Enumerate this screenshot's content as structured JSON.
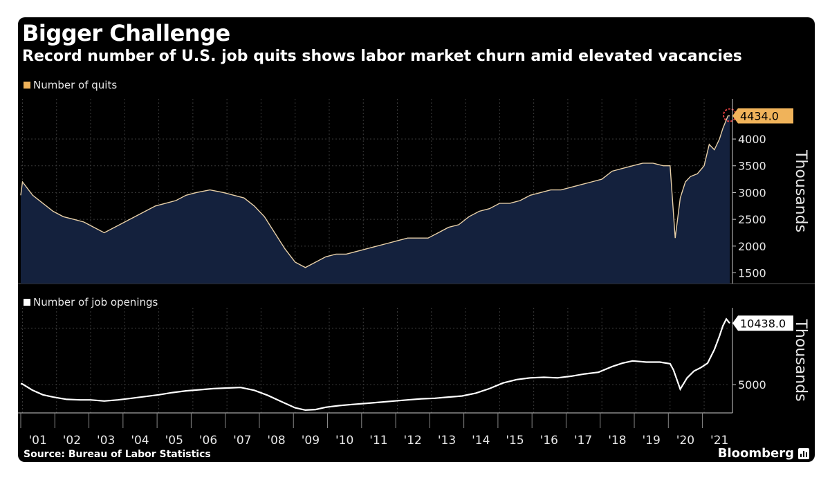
{
  "header": {
    "title": "Bigger Challenge",
    "subtitle": "Record number of U.S. job quits shows labor market churn amid elevated vacancies"
  },
  "footer": {
    "source": "Source: Bureau of Labor Statistics",
    "brand": "Bloomberg"
  },
  "colors": {
    "background": "#000000",
    "quits_line": "#e8d0a8",
    "quits_fill": "#14213d",
    "quits_badge": "#f0b35a",
    "openings_line": "#ffffff",
    "highlight_circle": "#e04040"
  },
  "chart_data": [
    {
      "type": "area",
      "legend": "Number of quits",
      "ylabel": "Thousands",
      "ylim": [
        1300,
        4750
      ],
      "yticks": [
        1500,
        2000,
        2500,
        3000,
        3500,
        4000
      ],
      "last_value_label": "4434.0",
      "x_ticks": [
        "'01",
        "'02",
        "'03",
        "'04",
        "'05",
        "'06",
        "'07",
        "'08",
        "'09",
        "'10",
        "'11",
        "'12",
        "'13",
        "'14",
        "'15",
        "'16",
        "'17",
        "'18",
        "'19",
        "'20",
        "'21"
      ],
      "series": [
        {
          "x": [
            2000.95,
            2001.0,
            2001.3,
            2001.6,
            2001.9,
            2002.2,
            2002.5,
            2002.8,
            2003.1,
            2003.4,
            2003.7,
            2004.0,
            2004.3,
            2004.6,
            2004.9,
            2005.2,
            2005.5,
            2005.8,
            2006.1,
            2006.5,
            2006.9,
            2007.2,
            2007.5,
            2007.8,
            2008.1,
            2008.4,
            2008.7,
            2009.0,
            2009.3,
            2009.6,
            2009.9,
            2010.2,
            2010.5,
            2010.8,
            2011.1,
            2011.4,
            2011.7,
            2012.0,
            2012.3,
            2012.6,
            2012.9,
            2013.2,
            2013.5,
            2013.8,
            2014.1,
            2014.4,
            2014.7,
            2015.0,
            2015.3,
            2015.6,
            2015.9,
            2016.2,
            2016.5,
            2016.8,
            2017.1,
            2017.4,
            2017.7,
            2018.0,
            2018.3,
            2018.6,
            2018.9,
            2019.2,
            2019.5,
            2019.8,
            2020.0,
            2020.15,
            2020.3,
            2020.45,
            2020.6,
            2020.8,
            2021.0,
            2021.15,
            2021.3,
            2021.45,
            2021.55,
            2021.7,
            2021.75
          ],
          "values": [
            2950,
            3200,
            2950,
            2800,
            2650,
            2550,
            2500,
            2450,
            2350,
            2250,
            2350,
            2450,
            2550,
            2650,
            2750,
            2800,
            2850,
            2950,
            3000,
            3050,
            3000,
            2950,
            2900,
            2750,
            2550,
            2250,
            1950,
            1700,
            1600,
            1700,
            1800,
            1850,
            1850,
            1900,
            1950,
            2000,
            2050,
            2100,
            2150,
            2150,
            2150,
            2250,
            2350,
            2400,
            2550,
            2650,
            2700,
            2800,
            2800,
            2850,
            2950,
            3000,
            3050,
            3050,
            3100,
            3150,
            3200,
            3250,
            3400,
            3450,
            3500,
            3550,
            3550,
            3500,
            3500,
            2150,
            2900,
            3200,
            3300,
            3350,
            3500,
            3900,
            3800,
            4000,
            4200,
            4434,
            4434
          ]
        }
      ]
    },
    {
      "type": "line",
      "legend": "Number of job openings",
      "ylabel": "Thousands",
      "ylim": [
        2500,
        11800
      ],
      "yticks": [
        5000
      ],
      "last_value_label": "10438.0",
      "x_ticks": [
        "'01",
        "'02",
        "'03",
        "'04",
        "'05",
        "'06",
        "'07",
        "'08",
        "'09",
        "'10",
        "'11",
        "'12",
        "'13",
        "'14",
        "'15",
        "'16",
        "'17",
        "'18",
        "'19",
        "'20",
        "'21"
      ],
      "series": [
        {
          "x": [
            2000.95,
            2001.0,
            2001.3,
            2001.6,
            2001.9,
            2002.3,
            2002.7,
            2003.0,
            2003.4,
            2003.8,
            2004.2,
            2004.6,
            2005.0,
            2005.4,
            2005.8,
            2006.2,
            2006.6,
            2007.0,
            2007.4,
            2007.8,
            2008.2,
            2008.6,
            2009.0,
            2009.3,
            2009.6,
            2009.9,
            2010.3,
            2010.7,
            2011.1,
            2011.5,
            2011.9,
            2012.3,
            2012.7,
            2013.1,
            2013.5,
            2013.9,
            2014.3,
            2014.7,
            2015.1,
            2015.5,
            2015.9,
            2016.3,
            2016.7,
            2017.1,
            2017.5,
            2017.9,
            2018.3,
            2018.6,
            2018.9,
            2019.3,
            2019.7,
            2020.0,
            2020.1,
            2020.3,
            2020.5,
            2020.7,
            2020.9,
            2021.1,
            2021.3,
            2021.45,
            2021.55,
            2021.65,
            2021.75
          ],
          "values": [
            5100,
            5050,
            4500,
            4100,
            3900,
            3700,
            3650,
            3650,
            3550,
            3650,
            3800,
            3950,
            4100,
            4300,
            4450,
            4550,
            4650,
            4700,
            4750,
            4500,
            4050,
            3500,
            2950,
            2750,
            2800,
            3000,
            3150,
            3250,
            3350,
            3450,
            3550,
            3650,
            3750,
            3800,
            3900,
            4000,
            4250,
            4650,
            5150,
            5450,
            5600,
            5650,
            5600,
            5750,
            5950,
            6100,
            6600,
            6900,
            7100,
            7000,
            7000,
            6850,
            6300,
            4600,
            5600,
            6200,
            6500,
            6900,
            8100,
            9300,
            10200,
            10800,
            10438
          ]
        }
      ]
    }
  ]
}
